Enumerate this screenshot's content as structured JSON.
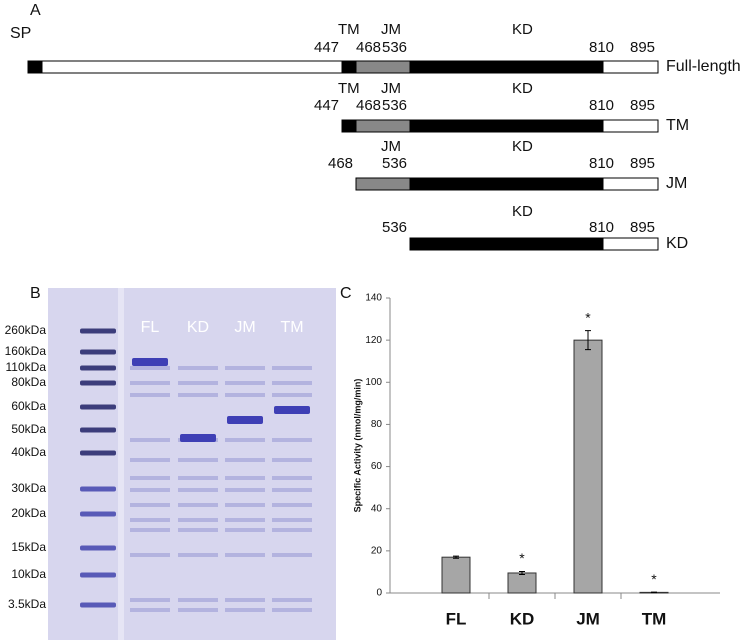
{
  "panel_a": {
    "label": "A",
    "signal_peptide": "SP",
    "constructs": [
      {
        "name": "Full-length",
        "domains": [
          "TM",
          "JM",
          "KD"
        ],
        "positions": [
          447,
          468,
          536,
          810,
          895
        ]
      },
      {
        "name": "TM",
        "domains": [
          "TM",
          "JM",
          "KD"
        ],
        "positions": [
          447,
          468,
          536,
          810,
          895
        ]
      },
      {
        "name": "JM",
        "domains": [
          "JM",
          "KD"
        ],
        "positions": [
          468,
          536,
          810,
          895
        ]
      },
      {
        "name": "KD",
        "domains": [
          "KD"
        ],
        "positions": [
          536,
          810,
          895
        ]
      }
    ]
  },
  "panel_b": {
    "label": "B",
    "markers": [
      "260kDa",
      "160kDa",
      "110kDa",
      "80kDa",
      "60kDa",
      "50kDa",
      "40kDa",
      "30kDa",
      "20kDa",
      "15kDa",
      "10kDa",
      "3.5kDa"
    ],
    "lanes": [
      "FL",
      "KD",
      "JM",
      "TM"
    ]
  },
  "chart_data": {
    "type": "bar",
    "panel_label": "C",
    "y_label": "Specific Activity (nmol/mg/min)",
    "categories": [
      "FL",
      "KD",
      "JM",
      "TM"
    ],
    "values": [
      17,
      9.5,
      120,
      0.3
    ],
    "errors": [
      0.5,
      0.7,
      4.5,
      0.1
    ],
    "annotations": [
      null,
      "*",
      "*",
      "*"
    ],
    "color": "#a6a6a6",
    "ylim": [
      0,
      140
    ],
    "yticks": [
      0,
      20,
      40,
      60,
      80,
      100,
      120,
      140
    ]
  }
}
